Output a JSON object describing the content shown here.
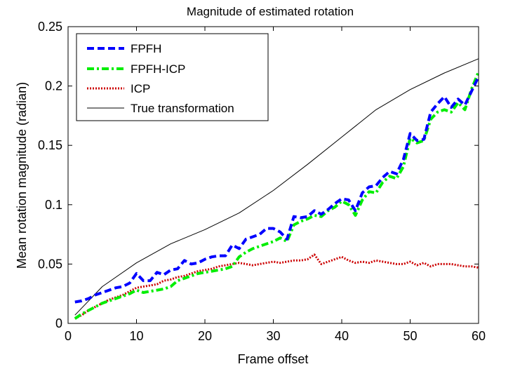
{
  "chart_data": {
    "type": "line",
    "title": "Magnitude of estimated rotation",
    "xlabel": "Frame offset",
    "ylabel": "Mean rotation magnitude (radian)",
    "xlim": [
      0,
      60
    ],
    "ylim": [
      0,
      0.25
    ],
    "xticks": [
      0,
      10,
      20,
      30,
      40,
      50,
      60
    ],
    "yticks": [
      0,
      0.05,
      0.1,
      0.15,
      0.2,
      0.25
    ],
    "xtick_labels": [
      "0",
      "10",
      "20",
      "30",
      "40",
      "50",
      "60"
    ],
    "ytick_labels": [
      "0",
      "0.05",
      "0.1",
      "0.15",
      "0.2",
      "0.25"
    ],
    "grid": false,
    "legend_position": "top-left",
    "series": [
      {
        "name": "FPFH",
        "color": "#0000ff",
        "style": "dashed",
        "x": [
          1,
          2,
          3,
          4,
          5,
          6,
          7,
          8,
          9,
          10,
          11,
          12,
          13,
          14,
          15,
          16,
          17,
          18,
          19,
          20,
          21,
          22,
          23,
          24,
          25,
          26,
          27,
          28,
          29,
          30,
          31,
          32,
          33,
          34,
          35,
          36,
          37,
          38,
          39,
          40,
          41,
          42,
          43,
          44,
          45,
          46,
          47,
          48,
          49,
          50,
          51,
          52,
          53,
          54,
          55,
          56,
          57,
          58,
          59,
          60
        ],
        "y": [
          0.018,
          0.019,
          0.021,
          0.024,
          0.026,
          0.028,
          0.03,
          0.031,
          0.034,
          0.042,
          0.036,
          0.036,
          0.043,
          0.041,
          0.045,
          0.046,
          0.053,
          0.05,
          0.051,
          0.054,
          0.056,
          0.057,
          0.057,
          0.066,
          0.063,
          0.071,
          0.073,
          0.075,
          0.08,
          0.08,
          0.077,
          0.071,
          0.09,
          0.089,
          0.09,
          0.095,
          0.092,
          0.096,
          0.101,
          0.105,
          0.104,
          0.095,
          0.11,
          0.115,
          0.116,
          0.123,
          0.128,
          0.126,
          0.138,
          0.16,
          0.154,
          0.155,
          0.178,
          0.185,
          0.191,
          0.182,
          0.189,
          0.184,
          0.196,
          0.208
        ]
      },
      {
        "name": "FPFH-ICP",
        "color": "#00ee00",
        "style": "dashdot",
        "x": [
          1,
          2,
          3,
          4,
          5,
          6,
          7,
          8,
          9,
          10,
          11,
          12,
          13,
          14,
          15,
          16,
          17,
          18,
          19,
          20,
          21,
          22,
          23,
          24,
          25,
          26,
          27,
          28,
          29,
          30,
          31,
          32,
          33,
          34,
          35,
          36,
          37,
          38,
          39,
          40,
          41,
          42,
          43,
          44,
          45,
          46,
          47,
          48,
          49,
          50,
          51,
          52,
          53,
          54,
          55,
          56,
          57,
          58,
          59,
          60
        ],
        "y": [
          0.004,
          0.008,
          0.011,
          0.014,
          0.017,
          0.019,
          0.021,
          0.023,
          0.025,
          0.028,
          0.026,
          0.027,
          0.028,
          0.029,
          0.031,
          0.036,
          0.038,
          0.04,
          0.042,
          0.043,
          0.044,
          0.045,
          0.046,
          0.048,
          0.056,
          0.06,
          0.063,
          0.065,
          0.067,
          0.069,
          0.072,
          0.069,
          0.083,
          0.086,
          0.088,
          0.091,
          0.09,
          0.095,
          0.098,
          0.103,
          0.1,
          0.091,
          0.104,
          0.111,
          0.11,
          0.119,
          0.124,
          0.122,
          0.132,
          0.156,
          0.152,
          0.154,
          0.172,
          0.178,
          0.18,
          0.178,
          0.186,
          0.18,
          0.198,
          0.212
        ]
      },
      {
        "name": "ICP",
        "color": "#cc0000",
        "style": "dotted",
        "x": [
          1,
          2,
          3,
          4,
          5,
          6,
          7,
          8,
          9,
          10,
          11,
          12,
          13,
          14,
          15,
          16,
          17,
          18,
          19,
          20,
          21,
          22,
          23,
          24,
          25,
          26,
          27,
          28,
          29,
          30,
          31,
          32,
          33,
          34,
          35,
          36,
          37,
          38,
          39,
          40,
          41,
          42,
          43,
          44,
          45,
          46,
          47,
          48,
          49,
          50,
          51,
          52,
          53,
          54,
          55,
          56,
          57,
          58,
          59,
          60
        ],
        "y": [
          0.004,
          0.007,
          0.011,
          0.014,
          0.017,
          0.02,
          0.022,
          0.024,
          0.027,
          0.03,
          0.031,
          0.032,
          0.033,
          0.036,
          0.037,
          0.039,
          0.04,
          0.042,
          0.044,
          0.045,
          0.046,
          0.048,
          0.049,
          0.05,
          0.051,
          0.05,
          0.049,
          0.05,
          0.051,
          0.052,
          0.051,
          0.052,
          0.053,
          0.053,
          0.054,
          0.058,
          0.05,
          0.052,
          0.054,
          0.056,
          0.053,
          0.051,
          0.052,
          0.051,
          0.053,
          0.052,
          0.051,
          0.05,
          0.05,
          0.052,
          0.049,
          0.051,
          0.048,
          0.05,
          0.05,
          0.05,
          0.049,
          0.048,
          0.048,
          0.047
        ]
      },
      {
        "name": "True transformation",
        "color": "#000000",
        "style": "solid",
        "x": [
          1,
          5,
          10,
          15,
          20,
          25,
          30,
          35,
          40,
          45,
          50,
          55,
          60
        ],
        "y": [
          0.007,
          0.031,
          0.051,
          0.067,
          0.079,
          0.093,
          0.112,
          0.134,
          0.157,
          0.18,
          0.197,
          0.211,
          0.223
        ]
      }
    ]
  }
}
